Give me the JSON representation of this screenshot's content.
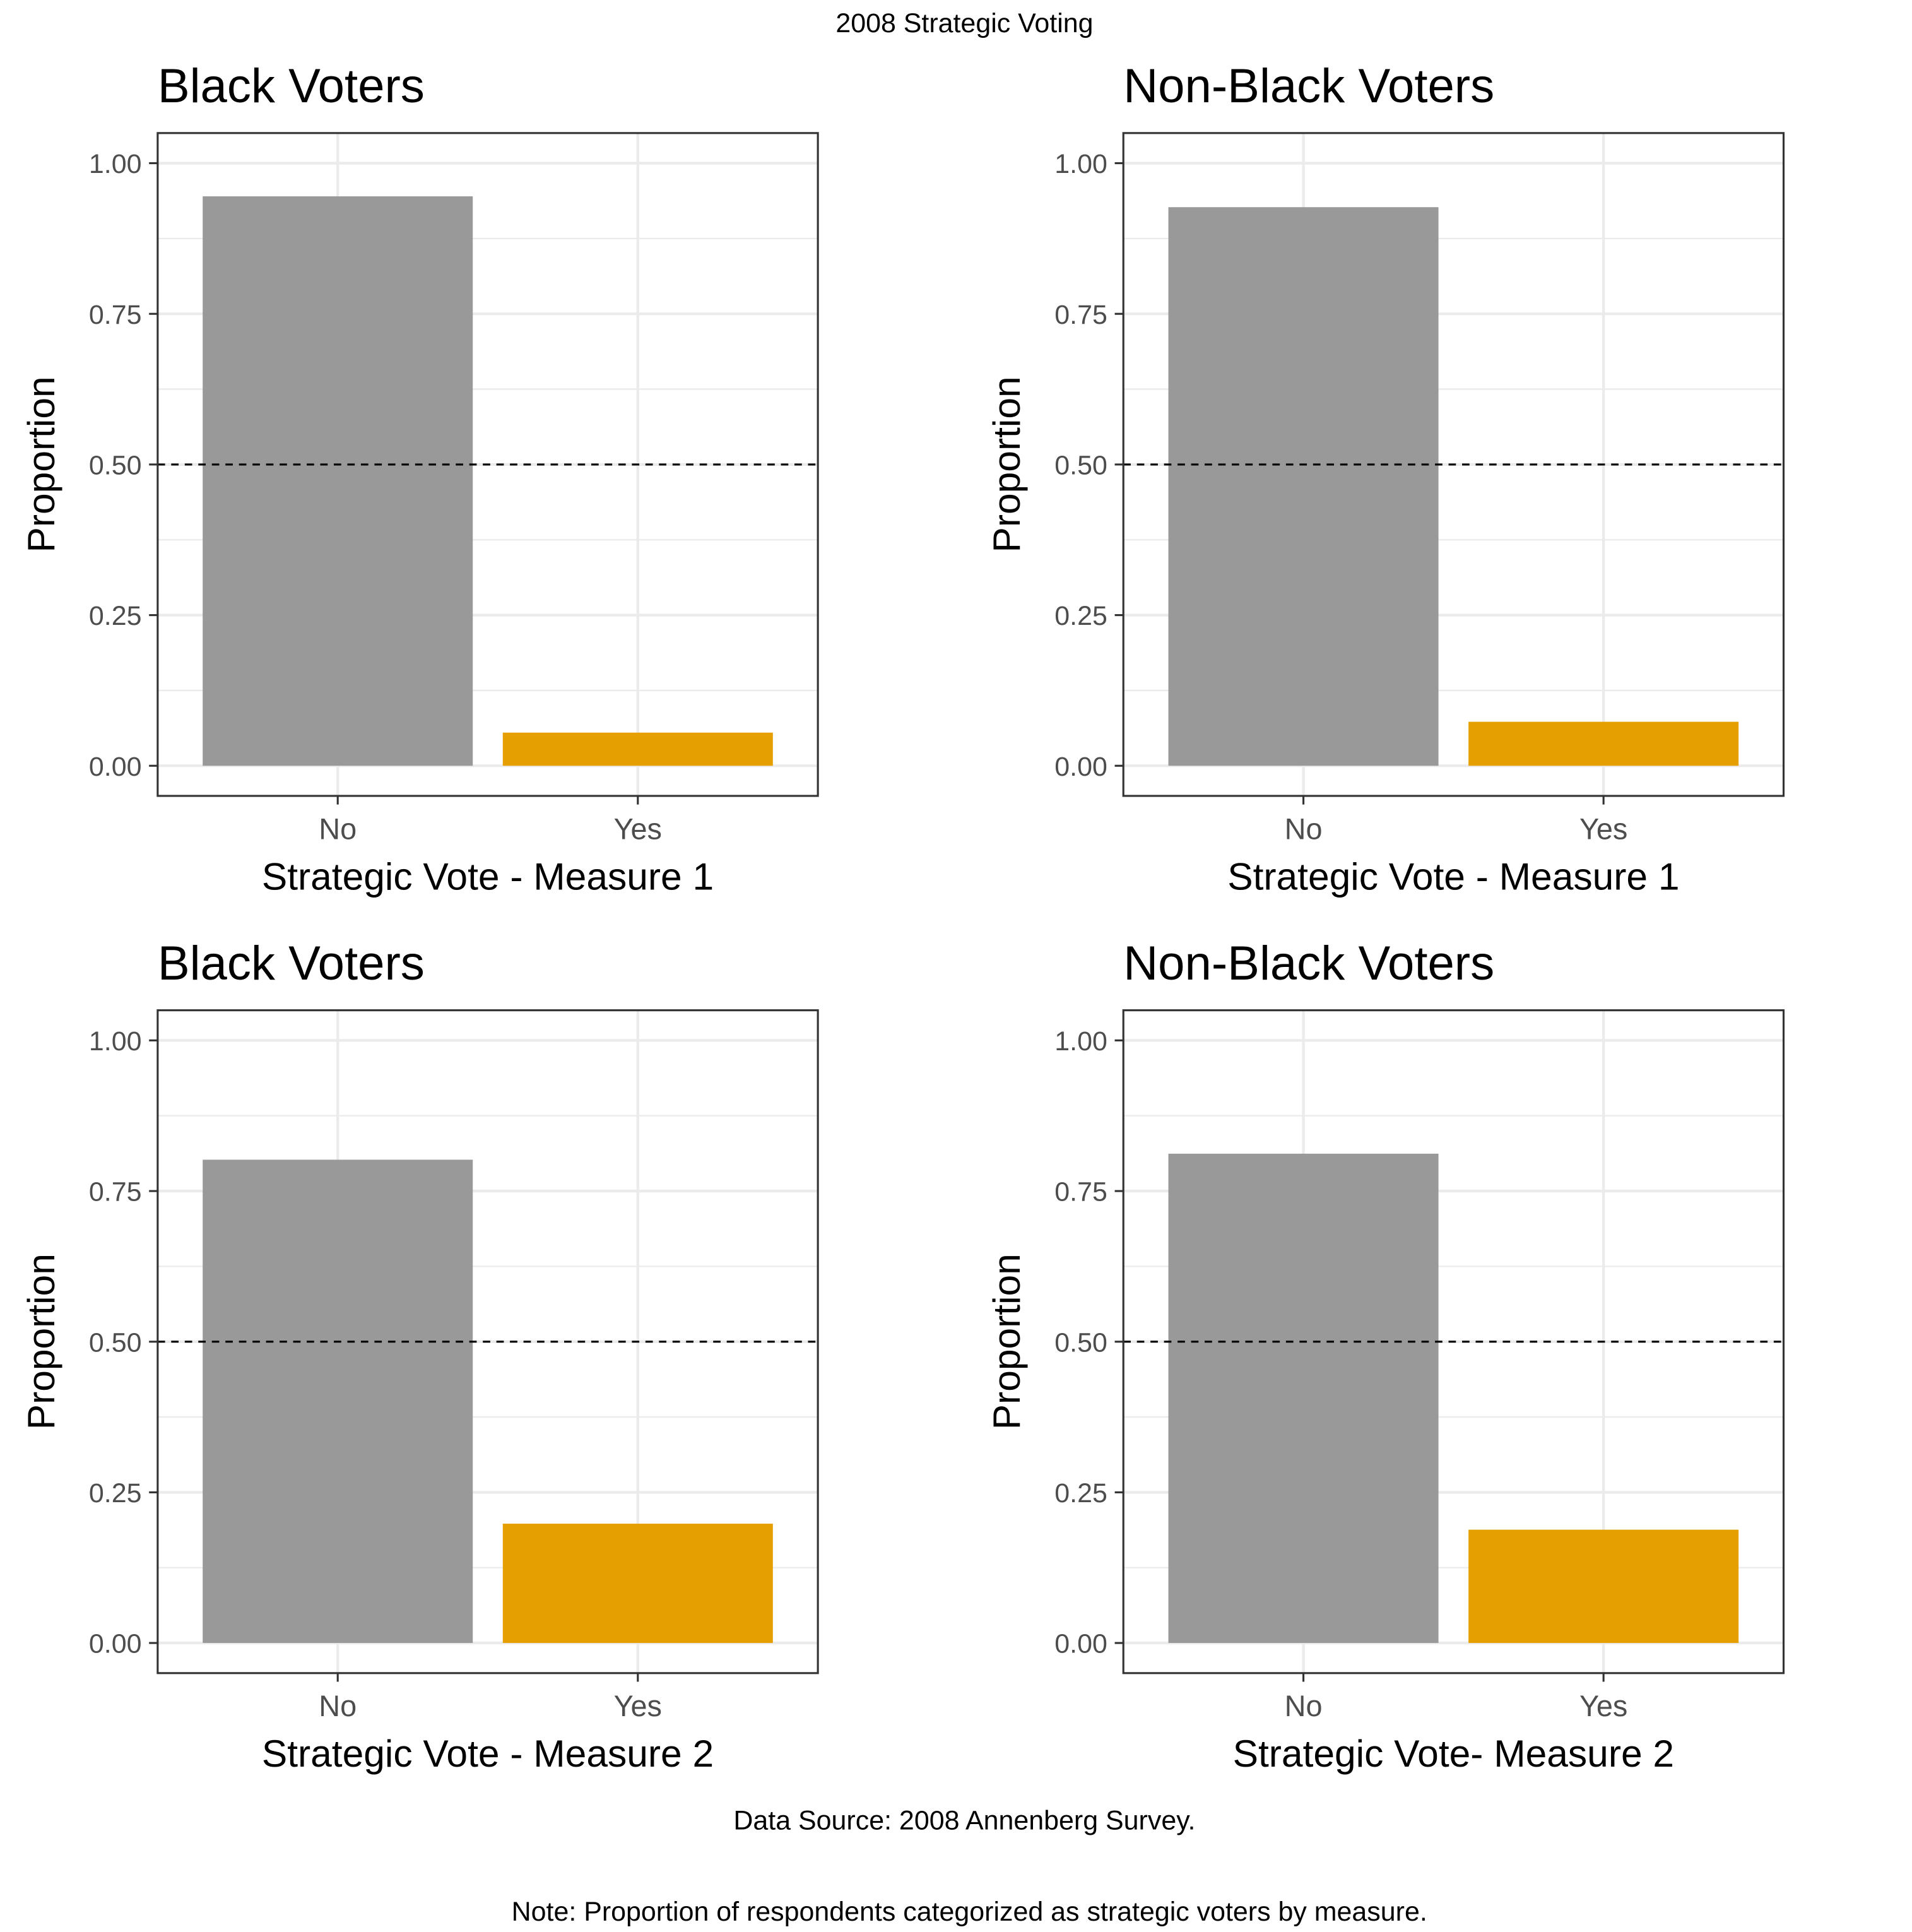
{
  "figure": {
    "title": "2008 Strategic Voting",
    "caption_source": "Data Source: 2008 Annenberg Survey.",
    "caption_note": "Note: Proportion of respondents categorized as strategic voters by measure."
  },
  "colors": {
    "no": "#999999",
    "yes": "#E69F00",
    "grid": "#ebebeb",
    "panel_border": "#333333",
    "reference_line": "#000000"
  },
  "chart_data": [
    {
      "type": "bar",
      "title": "Black Voters",
      "xlabel": "Strategic Vote - Measure 1",
      "ylabel": "Proportion",
      "categories": [
        "No",
        "Yes"
      ],
      "values": [
        0.945,
        0.055
      ],
      "ylim": [
        -0.05,
        1.05
      ],
      "yticks": [
        "0.00",
        "0.25",
        "0.50",
        "0.75",
        "1.00"
      ],
      "reference_line": 0.5,
      "grid": true,
      "legend": "none"
    },
    {
      "type": "bar",
      "title": "Non-Black Voters",
      "xlabel": "Strategic Vote - Measure 1",
      "ylabel": "Proportion",
      "categories": [
        "No",
        "Yes"
      ],
      "values": [
        0.927,
        0.073
      ],
      "ylim": [
        -0.05,
        1.05
      ],
      "yticks": [
        "0.00",
        "0.25",
        "0.50",
        "0.75",
        "1.00"
      ],
      "reference_line": 0.5,
      "grid": true,
      "legend": "none"
    },
    {
      "type": "bar",
      "title": "Black Voters",
      "xlabel": "Strategic Vote - Measure 2",
      "ylabel": "Proportion",
      "categories": [
        "No",
        "Yes"
      ],
      "values": [
        0.802,
        0.198
      ],
      "ylim": [
        -0.05,
        1.05
      ],
      "yticks": [
        "0.00",
        "0.25",
        "0.50",
        "0.75",
        "1.00"
      ],
      "reference_line": 0.5,
      "grid": true,
      "legend": "none"
    },
    {
      "type": "bar",
      "title": "Non-Black Voters",
      "xlabel": "Strategic Vote- Measure 2",
      "ylabel": "Proportion",
      "categories": [
        "No",
        "Yes"
      ],
      "values": [
        0.812,
        0.188
      ],
      "ylim": [
        -0.05,
        1.05
      ],
      "yticks": [
        "0.00",
        "0.25",
        "0.50",
        "0.75",
        "1.00"
      ],
      "reference_line": 0.5,
      "grid": true,
      "legend": "none"
    }
  ]
}
